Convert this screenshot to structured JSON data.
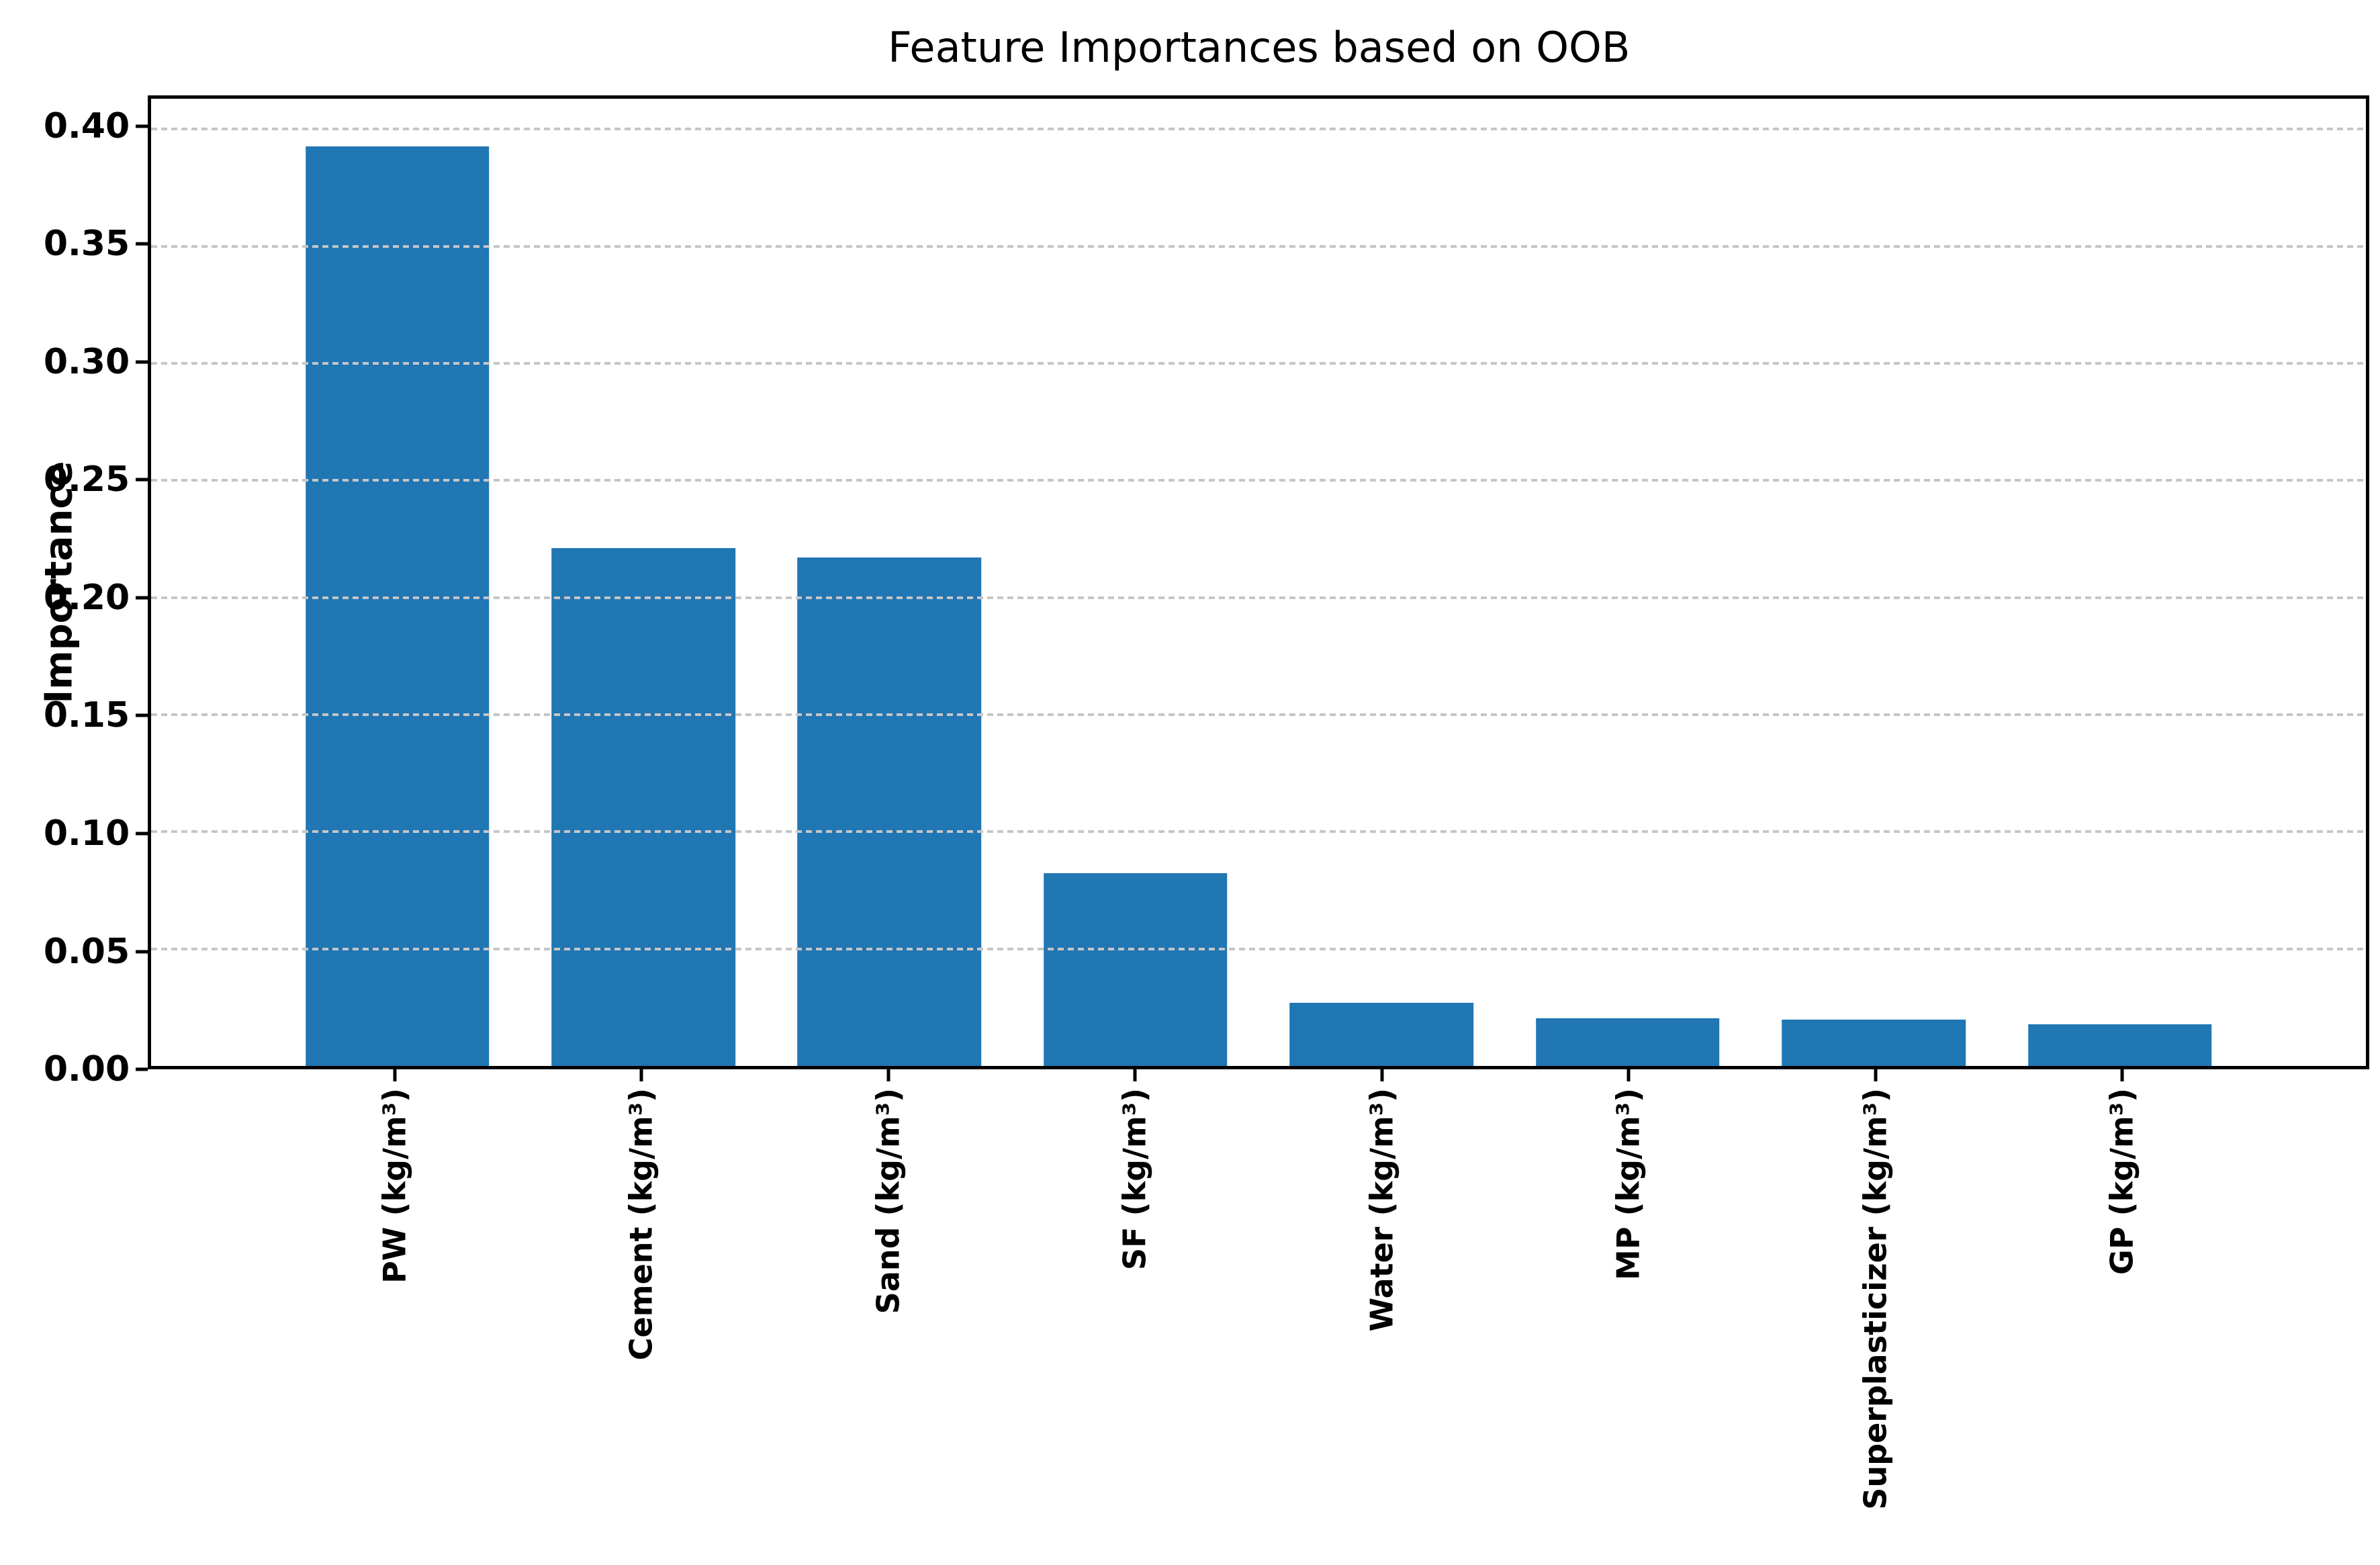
{
  "figure": {
    "background": "#ffffff"
  },
  "chart_data": {
    "type": "bar",
    "title": "Feature Importances based on OOB",
    "ylabel": "Importance",
    "xlabel": "",
    "categories": [
      "PW (kg/m³)",
      "Cement (kg/m³)",
      "Sand (kg/m³)",
      "SF (kg/m³)",
      "Water (kg/m³)",
      "MP (kg/m³)",
      "Superplasticizer (kg/m³)",
      "GP (kg/m³)"
    ],
    "values": [
      0.3925,
      0.2212,
      0.2171,
      0.0824,
      0.027,
      0.0203,
      0.0197,
      0.0179
    ],
    "ylim": [
      0,
      0.413
    ],
    "yticks": [
      0.0,
      0.05,
      0.1,
      0.15,
      0.2,
      0.25,
      0.3,
      0.35,
      0.4
    ],
    "ytick_labels": [
      "0.00",
      "0.05",
      "0.10",
      "0.15",
      "0.20",
      "0.25",
      "0.30",
      "0.35",
      "0.40"
    ],
    "grid": "horizontal dashed, drawn over bars",
    "legend": "none",
    "bar_color": "#2176b4",
    "grid_color": "#c6c6c6",
    "axis_color": "#000000",
    "text_color": "#000000"
  }
}
